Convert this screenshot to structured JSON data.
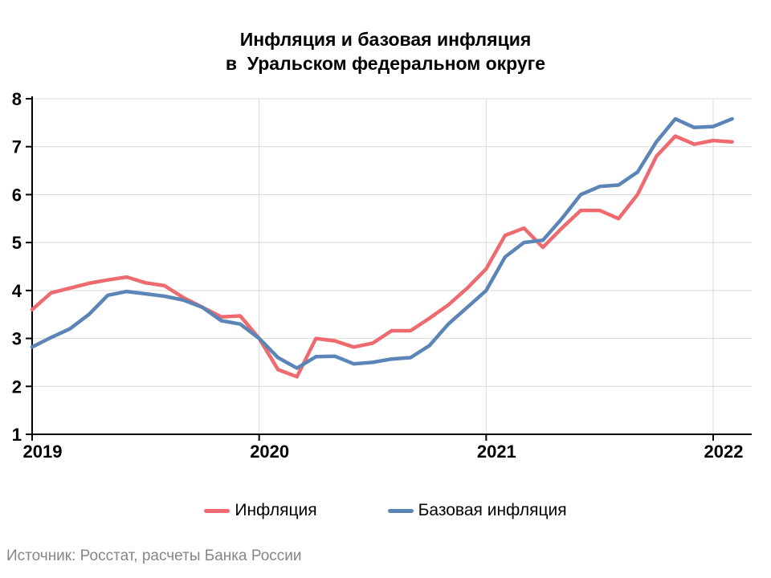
{
  "title": {
    "line1": "Инфляция и базовая инфляция",
    "line2": "в  Уральском федеральном округе"
  },
  "source": "Источник: Росстат, расчеты Банка России",
  "legend": [
    {
      "label": "Инфляция",
      "color": "#ee6a6e"
    },
    {
      "label": "Базовая инфляция",
      "color": "#5b85b7"
    }
  ],
  "chart_data": {
    "type": "line",
    "title": "Инфляция и базовая инфляция в Уральском федеральном округе",
    "xlabel": "",
    "ylabel": "",
    "ylim": [
      1,
      8
    ],
    "y_ticks": [
      1,
      2,
      3,
      4,
      5,
      6,
      7,
      8
    ],
    "x_tick_labels": [
      "2019",
      "2020",
      "2021",
      "2022"
    ],
    "grid": true,
    "legend_position": "bottom",
    "x": [
      "2019-01",
      "2019-02",
      "2019-03",
      "2019-04",
      "2019-05",
      "2019-06",
      "2019-07",
      "2019-08",
      "2019-09",
      "2019-10",
      "2019-11",
      "2019-12",
      "2020-01",
      "2020-02",
      "2020-03",
      "2020-04",
      "2020-05",
      "2020-06",
      "2020-07",
      "2020-08",
      "2020-09",
      "2020-10",
      "2020-11",
      "2020-12",
      "2021-01",
      "2021-02",
      "2021-03",
      "2021-04",
      "2021-05",
      "2021-06",
      "2021-07",
      "2021-08",
      "2021-09",
      "2021-10",
      "2021-11",
      "2021-12",
      "2022-01",
      "2022-02"
    ],
    "series": [
      {
        "name": "Инфляция",
        "color": "#ee6a6e",
        "values": [
          3.6,
          3.95,
          4.05,
          4.15,
          4.22,
          4.28,
          4.16,
          4.1,
          3.85,
          3.65,
          3.45,
          3.47,
          3.0,
          2.35,
          2.2,
          3.0,
          2.95,
          2.82,
          2.9,
          3.16,
          3.16,
          3.42,
          3.7,
          4.05,
          4.45,
          5.15,
          5.3,
          4.9,
          5.3,
          5.67,
          5.67,
          5.5,
          6.0,
          6.8,
          7.22,
          7.05,
          7.13,
          7.1
        ]
      },
      {
        "name": "Базовая инфляция",
        "color": "#5b85b7",
        "values": [
          2.82,
          3.02,
          3.2,
          3.5,
          3.9,
          3.98,
          3.93,
          3.88,
          3.8,
          3.65,
          3.37,
          3.3,
          3.0,
          2.6,
          2.38,
          2.62,
          2.63,
          2.47,
          2.5,
          2.57,
          2.6,
          2.85,
          3.3,
          3.65,
          4.0,
          4.7,
          5.0,
          5.05,
          5.5,
          6.0,
          6.17,
          6.2,
          6.47,
          7.1,
          7.58,
          7.4,
          7.42,
          7.58
        ]
      }
    ],
    "style": {
      "grid_color": "#d9d9d9",
      "axis_color": "#000000",
      "line_width": 4.5
    }
  }
}
